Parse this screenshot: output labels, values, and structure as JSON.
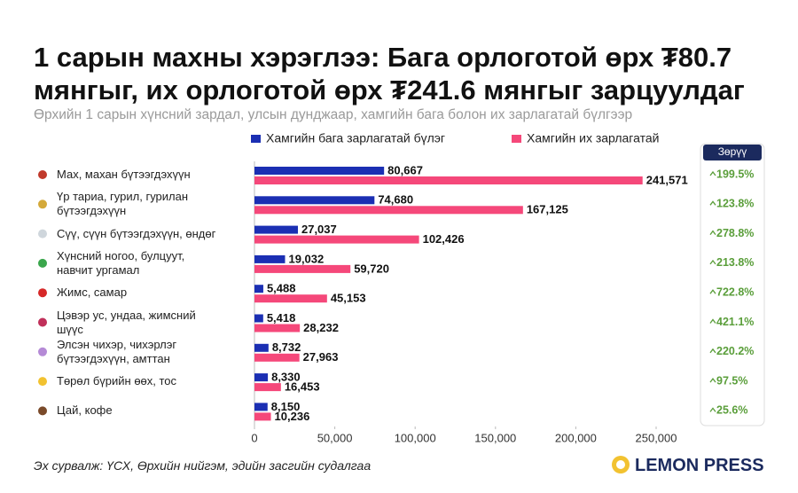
{
  "chart_data": {
    "type": "bar",
    "orientation": "horizontal",
    "title": "1 сарын махны хэрэглээ: Бага орлоготой өрх ₮80.7 мянгыг, их орлоготой өрх ₮241.6 мянгыг зарцуулдаг",
    "subtitle": "Өрхийн 1 сарын хүнсний зардал, улсын дунджаар, хамгийн бага болон их зарлагатай бүлгээр",
    "categories": [
      "Мах, махан бүтээгдэхүүн",
      "Үр тариа, гурил, гурилан бүтээгдэхүүн",
      "Сүү, сүүн бүтээгдэхүүн, өндөг",
      "Хүнсний ногоо, булцуут, навчит ургамал",
      "Жимс, самар",
      "Цэвэр ус, ундаа, жимсний шүүс",
      "Элсэн чихэр, чихэрлэг бүтээгдэхүүн, амттан",
      "Төрөл бүрийн өөх, тос",
      "Цай, кофе"
    ],
    "series": [
      {
        "name": "Хамгийн бага зарлагатай бүлэг",
        "color": "#1b2fb3",
        "values": [
          80667,
          74680,
          27037,
          19032,
          5488,
          5418,
          8732,
          8330,
          8150
        ],
        "value_labels": [
          "80,667",
          "74,680",
          "27,037",
          "19,032",
          "5,488",
          "5,418",
          "8,732",
          "8,330",
          "8,150"
        ]
      },
      {
        "name": "Хамгийн их зарлагатай",
        "color": "#f5487a",
        "values": [
          241571,
          167125,
          102426,
          59720,
          45153,
          28232,
          27963,
          16453,
          10236
        ],
        "value_labels": [
          "241,571",
          "167,125",
          "102,426",
          "59,720",
          "45,153",
          "28,232",
          "27,963",
          "16,453",
          "10,236"
        ]
      }
    ],
    "xlim": [
      0,
      250000
    ],
    "xticks": [
      0,
      {
        "value": 50000,
        "label": "50,000"
      },
      {
        "value": 100000,
        "label": "100,000"
      },
      {
        "value": 150000,
        "label": "150,000"
      },
      {
        "value": 200000,
        "label": "200,000"
      },
      {
        "value": 250000,
        "label": "250,000"
      }
    ],
    "differences": {
      "title": "Зөрүү",
      "color": "#5a9e3a",
      "values": [
        199.5,
        123.8,
        278.8,
        213.8,
        722.8,
        421.1,
        220.2,
        97.5,
        25.6
      ],
      "value_labels": [
        "199.5%",
        "123.8%",
        "278.8%",
        "213.8%",
        "722.8%",
        "421.1%",
        "220.2%",
        "97.5%",
        "25.6%"
      ]
    },
    "source": "Эх сурвалж: ҮСХ, Өрхийн нийгэм, эдийн засгийн судалгаа",
    "brand": "LEMON PRESS"
  }
}
